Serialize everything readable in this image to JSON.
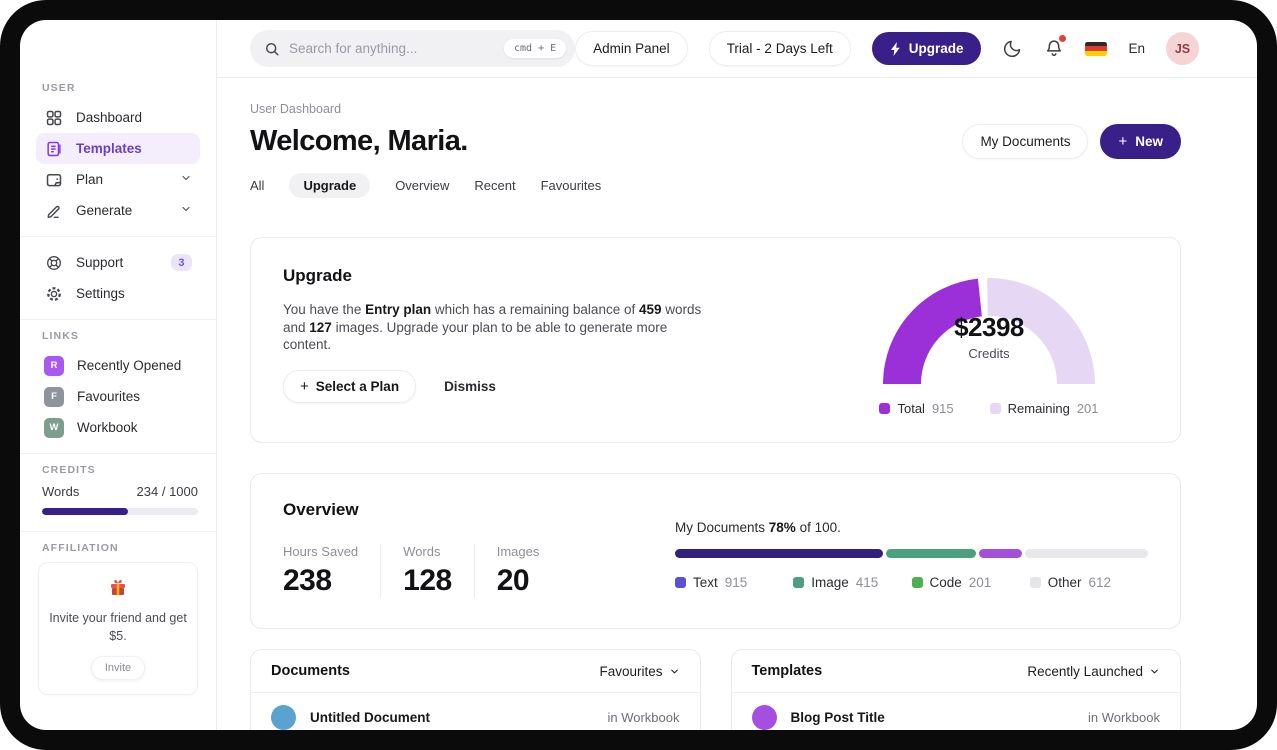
{
  "colors": {
    "accent_dark_purple": "#392088",
    "gauge_total": "#9b30d9",
    "gauge_remaining": "#e6d7f5",
    "sidebar_active": "#6d3fc8",
    "notification_dot": "#e04438"
  },
  "sidebar": {
    "section_user": "USER",
    "nav": [
      {
        "label": "Dashboard"
      },
      {
        "label": "Templates"
      },
      {
        "label": "Plan"
      },
      {
        "label": "Generate"
      }
    ],
    "support": {
      "label": "Support",
      "badge": "3"
    },
    "settings_label": "Settings",
    "section_links": "LINKS",
    "links": [
      {
        "initial": "R",
        "label": "Recently Opened",
        "color": "#a958f0"
      },
      {
        "initial": "F",
        "label": "Favourites",
        "color": "#8e939c"
      },
      {
        "initial": "W",
        "label": "Workbook",
        "color": "#7d9d8e"
      }
    ],
    "section_credits": "CREDITS",
    "credits": {
      "label": "Words",
      "value": "234 / 1000",
      "percent": 55
    },
    "section_affiliation": "AFFILIATION",
    "affiliation": {
      "text": "Invite your friend and get $5.",
      "button": "Invite"
    }
  },
  "topbar": {
    "search_placeholder": "Search for anything...",
    "search_shortcut": "cmd + E",
    "admin_panel": "Admin Panel",
    "trial": "Trial - 2 Days Left",
    "upgrade": "Upgrade",
    "language": "En",
    "avatar": "JS"
  },
  "header": {
    "breadcrumb": "User Dashboard",
    "title": "Welcome, Maria.",
    "my_documents": "My Documents",
    "new_plus": "+",
    "new": "New"
  },
  "tabs": [
    "All",
    "Upgrade",
    "Overview",
    "Recent",
    "Favourites"
  ],
  "upgrade_card": {
    "title": "Upgrade",
    "body": [
      "You have the ",
      "Entry plan",
      " which has a remaining balance of ",
      "459",
      " words and ",
      "127",
      " images. Upgrade your plan to be able to generate more content."
    ],
    "select_plan_plus": "+",
    "select_plan": "Select a Plan",
    "dismiss": "Dismiss",
    "chart_data": {
      "type": "pie",
      "shape": "half-donut-gauge",
      "center_value": "$2398",
      "center_label": "Credits",
      "series": [
        {
          "name": "Total",
          "value": 915,
          "color": "#9b30d9"
        },
        {
          "name": "Remaining",
          "value": 201,
          "color": "#e6d7f5"
        }
      ]
    }
  },
  "overview_card": {
    "title": "Overview",
    "stats": [
      {
        "label": "Hours Saved",
        "value": "238"
      },
      {
        "label": "Words",
        "value": "128"
      },
      {
        "label": "Images",
        "value": "20"
      }
    ],
    "progress_label": [
      "My Documents ",
      "78%",
      " of 100."
    ],
    "chart_data": {
      "type": "bar",
      "subtype": "stacked-progress",
      "title": "My Documents 78% of 100.",
      "percent": 78,
      "of": 100,
      "segments": [
        {
          "name": "Text",
          "value": 915,
          "percent": 44,
          "bar_color": "#32207d",
          "legend_color": "#5b4fd8"
        },
        {
          "name": "Image",
          "value": 415,
          "percent": 19,
          "bar_color": "#4ba081",
          "legend_color": "#4ba081"
        },
        {
          "name": "Code",
          "value": 201,
          "percent": 9,
          "bar_color": "#a44fd8",
          "legend_color": "#4caf50"
        },
        {
          "name": "Other",
          "value": 612,
          "percent": 28,
          "bar_color": "#e7e7ec",
          "legend_color": "#e4e4e9"
        }
      ]
    }
  },
  "documents_card": {
    "title": "Documents",
    "filter": "Favourites",
    "row": {
      "name": "Untitled Document",
      "location": "in Workbook",
      "color": "#5ba3cf"
    }
  },
  "templates_card": {
    "title": "Templates",
    "filter": "Recently Launched",
    "row": {
      "name": "Blog Post Title",
      "location": "in Workbook",
      "color": "#a44fe0"
    }
  }
}
